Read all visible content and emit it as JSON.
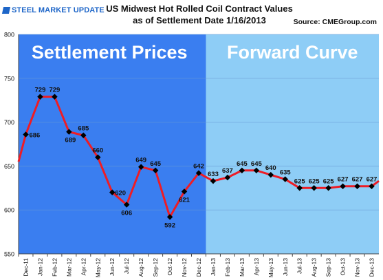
{
  "header": {
    "logo_text": "STEEL MARKET UPDATE",
    "title_line1": "US Midwest Hot Rolled Coil Contract Values",
    "title_line2": "as of Settlement Date 1/16/2013",
    "source": "Source: CMEGroup.com"
  },
  "colors": {
    "settlement_bg": "#3a7ef0",
    "forward_bg": "#8ecdf6",
    "line": "#ee1c25",
    "marker": "#000000"
  },
  "chart_data": {
    "type": "line",
    "title": "US Midwest Hot Rolled Coil Contract Values as of Settlement Date 1/16/2013",
    "xlabel": "",
    "ylabel": "",
    "ylim": [
      550,
      800
    ],
    "yticks": [
      550,
      600,
      650,
      700,
      750,
      800
    ],
    "grid": true,
    "categories": [
      "Dec-11",
      "Jan-12",
      "Feb-12",
      "Mar-12",
      "Apr-12",
      "May-12",
      "Jun-12",
      "Jul-12",
      "Aug-12",
      "Sep-12",
      "Oct-12",
      "Nov-12",
      "Dec-12",
      "Jan-13",
      "Feb-13",
      "Mar-13",
      "Apr-13",
      "May-13",
      "Jun-13",
      "Jul-13",
      "Aug-13",
      "Sep-13",
      "Oct-13",
      "Nov-13",
      "Dec-13"
    ],
    "values": [
      686,
      729,
      729,
      689,
      685,
      660,
      620,
      606,
      649,
      645,
      592,
      621,
      642,
      633,
      637,
      645,
      645,
      640,
      635,
      625,
      625,
      625,
      627,
      627,
      627
    ],
    "left_edge_value": 655,
    "right_edge_value": 633,
    "regions": [
      {
        "label": "Settlement Prices",
        "from": "Dec-11",
        "to": "Dec-12"
      },
      {
        "label": "Forward Curve",
        "from": "Jan-13",
        "to": "Dec-13"
      }
    ]
  }
}
